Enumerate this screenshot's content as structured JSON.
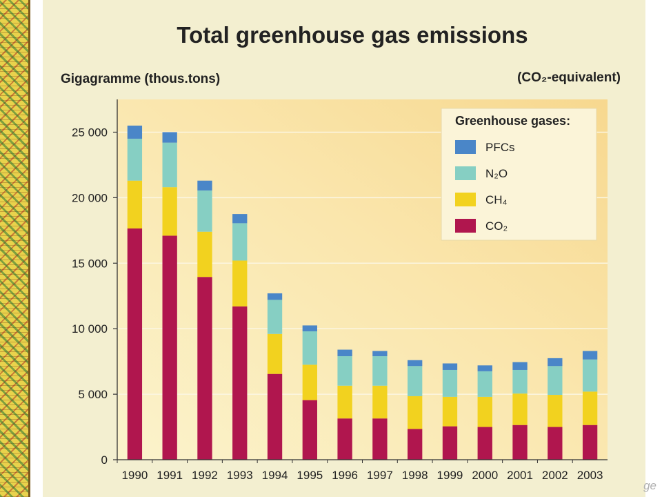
{
  "chart_data": {
    "type": "bar",
    "stacked": true,
    "title": "Total greenhouse gas emissions",
    "ylabel": "Gigagramme (thous.tons)",
    "unit_note": "(CO₂-equivalent)",
    "ylim": [
      0,
      27500
    ],
    "yticks": [
      0,
      5000,
      10000,
      15000,
      20000,
      25000
    ],
    "ytick_labels": [
      "0",
      "5 000",
      "10 000",
      "15 000",
      "20 000",
      "25 000"
    ],
    "categories": [
      "1990",
      "1991",
      "1992",
      "1993",
      "1994",
      "1995",
      "1996",
      "1997",
      "1998",
      "1999",
      "2000",
      "2001",
      "2002",
      "2003"
    ],
    "legend": {
      "title": "Greenhouse gases:",
      "position": "top-right"
    },
    "series": [
      {
        "name": "CO₂",
        "color": "#b0164e",
        "values": [
          17650,
          17100,
          13950,
          11700,
          6550,
          4550,
          3150,
          3150,
          2350,
          2550,
          2500,
          2650,
          2500,
          2650
        ]
      },
      {
        "name": "CH₄",
        "color": "#f2d21f",
        "values": [
          3650,
          3700,
          3450,
          3500,
          3050,
          2700,
          2500,
          2500,
          2500,
          2250,
          2300,
          2400,
          2450,
          2550
        ]
      },
      {
        "name": "N₂O",
        "color": "#86cfc3",
        "values": [
          3200,
          3400,
          3150,
          2850,
          2600,
          2550,
          2250,
          2250,
          2300,
          2050,
          1950,
          1800,
          2200,
          2450
        ]
      },
      {
        "name": "PFCs",
        "color": "#4a86c8",
        "values": [
          1000,
          800,
          750,
          700,
          500,
          450,
          500,
          400,
          450,
          500,
          450,
          600,
          600,
          650
        ]
      }
    ],
    "legend_order": [
      "PFCs",
      "N₂O",
      "CH₄",
      "CO₂"
    ]
  },
  "edge_text": "ge"
}
